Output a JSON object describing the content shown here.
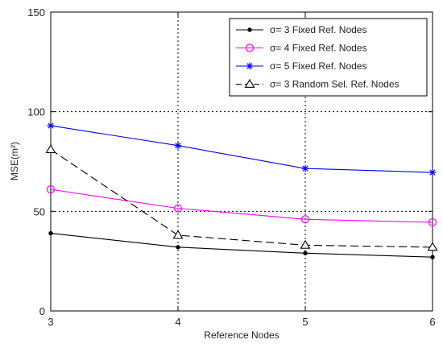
{
  "chart_data": {
    "type": "line",
    "title": "",
    "xlabel": "Reference Nodes",
    "ylabel": "MSE(m²)",
    "xlim": [
      3,
      6
    ],
    "ylim": [
      0,
      150
    ],
    "x": [
      3,
      4,
      5,
      6
    ],
    "xticks": [
      "3",
      "4",
      "5",
      "6"
    ],
    "yticks": [
      "0",
      "50",
      "100",
      "150"
    ],
    "grid": true,
    "legend_position": "top-right",
    "series": [
      {
        "name": "σ= 3 Fixed Ref. Nodes",
        "values": [
          39,
          32,
          29,
          27
        ],
        "color": "#000000",
        "marker": "dot",
        "line_style": "solid"
      },
      {
        "name": "σ= 4 Fixed Ref. Nodes",
        "values": [
          61,
          51.5,
          46,
          44.5
        ],
        "color": "#ff00ff",
        "marker": "circle",
        "line_style": "solid"
      },
      {
        "name": "σ= 5 Fixed Ref. Nodes",
        "values": [
          93,
          83,
          71.5,
          69.5
        ],
        "color": "#0000ff",
        "marker": "asterisk",
        "line_style": "solid"
      },
      {
        "name": "σ= 3 Random Sel. Ref. Nodes",
        "values": [
          81,
          38,
          33,
          32
        ],
        "color": "#000000",
        "marker": "triangle",
        "line_style": "dashed"
      }
    ]
  }
}
